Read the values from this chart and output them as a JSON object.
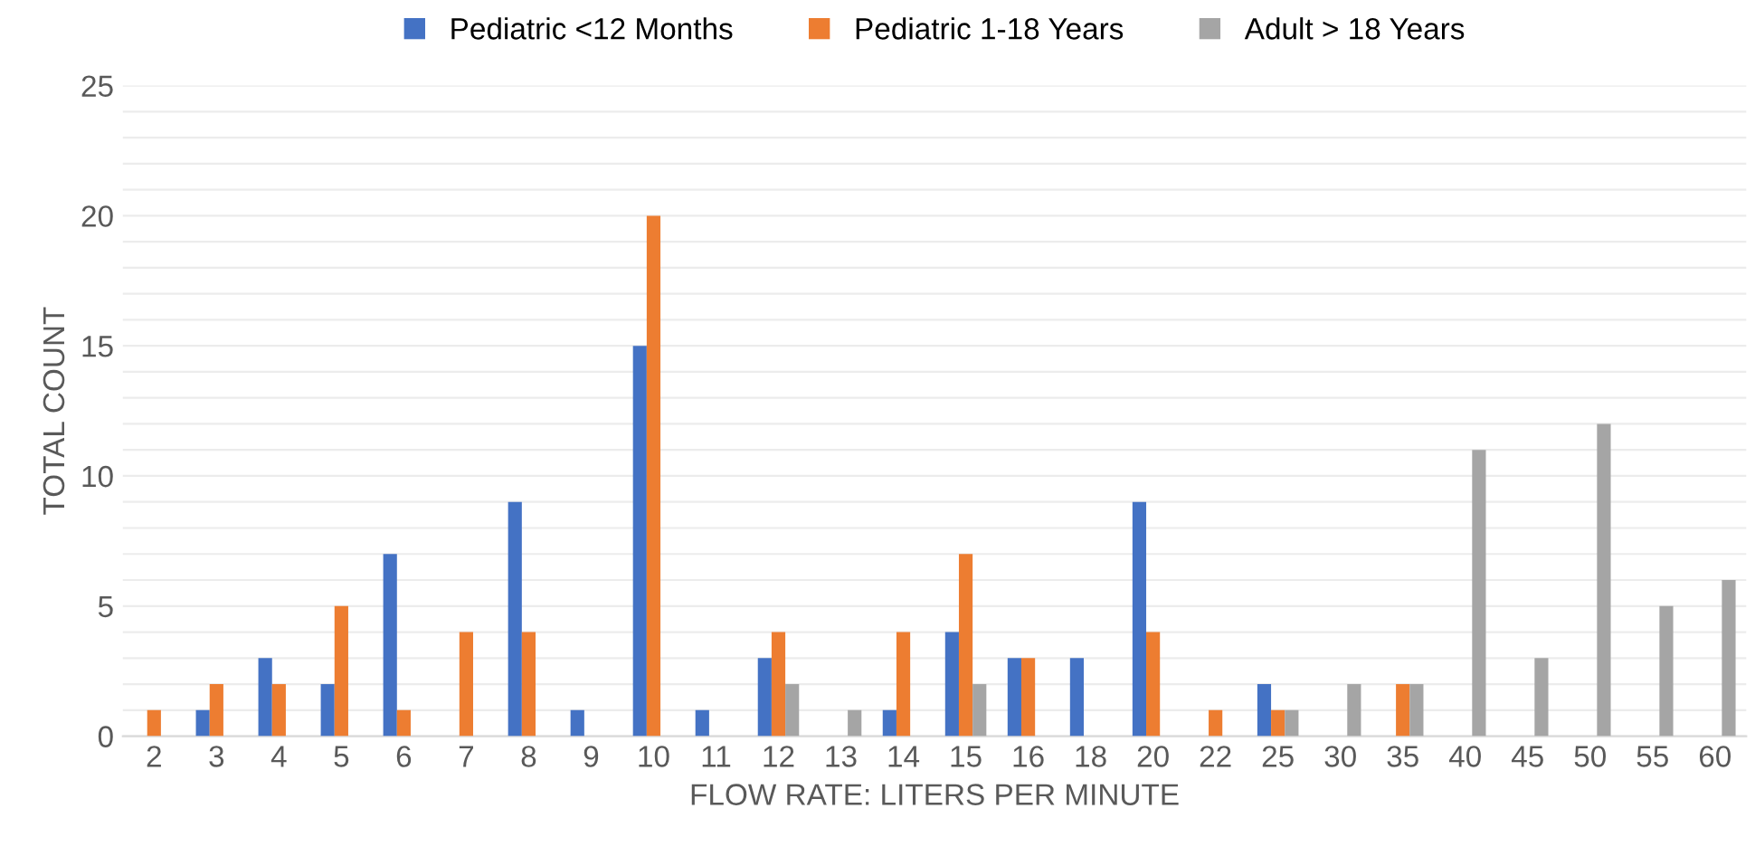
{
  "chart_data": {
    "type": "bar",
    "xlabel": "FLOW RATE: LITERS PER MINUTE",
    "ylabel": "TOTAL COUNT",
    "categories": [
      "2",
      "3",
      "4",
      "5",
      "6",
      "7",
      "8",
      "9",
      "10",
      "11",
      "12",
      "13",
      "14",
      "15",
      "16",
      "18",
      "20",
      "22",
      "25",
      "30",
      "35",
      "40",
      "45",
      "50",
      "55",
      "60"
    ],
    "series": [
      {
        "name": "Pediatric <12 Months",
        "color": "#4472c4",
        "values": [
          0,
          1,
          3,
          2,
          7,
          0,
          9,
          1,
          15,
          1,
          3,
          0,
          1,
          4,
          3,
          3,
          9,
          0,
          2,
          0,
          0,
          0,
          0,
          0,
          0,
          0
        ]
      },
      {
        "name": "Pediatric 1-18 Years",
        "color": "#ed7d31",
        "values": [
          1,
          2,
          2,
          5,
          1,
          4,
          4,
          0,
          20,
          0,
          4,
          0,
          4,
          7,
          3,
          0,
          4,
          1,
          1,
          0,
          2,
          0,
          0,
          0,
          0,
          0
        ]
      },
      {
        "name": "Adult > 18 Years",
        "color": "#a5a5a5",
        "values": [
          0,
          0,
          0,
          0,
          0,
          0,
          0,
          0,
          0,
          0,
          2,
          1,
          0,
          2,
          0,
          0,
          0,
          0,
          1,
          2,
          2,
          11,
          3,
          12,
          5,
          6
        ]
      }
    ],
    "ylim": [
      0,
      25
    ],
    "yticks": [
      0,
      {
        "value": 1,
        "label": null
      },
      {
        "value": 2,
        "label": null
      },
      {
        "value": 3,
        "label": null
      },
      {
        "value": 4,
        "label": null
      },
      5,
      {
        "value": 6,
        "label": null
      },
      {
        "value": 7,
        "label": null
      },
      {
        "value": 8,
        "label": null
      },
      {
        "value": 9,
        "label": null
      },
      10,
      {
        "value": 11,
        "label": null
      },
      {
        "value": 12,
        "label": null
      },
      {
        "value": 13,
        "label": null
      },
      {
        "value": 14,
        "label": null
      },
      15,
      {
        "value": 16,
        "label": null
      },
      {
        "value": 17,
        "label": null
      },
      {
        "value": 18,
        "label": null
      },
      {
        "value": 19,
        "label": null
      },
      20,
      {
        "value": 21,
        "label": null
      },
      {
        "value": 22,
        "label": null
      },
      {
        "value": 23,
        "label": null
      },
      {
        "value": 24,
        "label": null
      },
      25
    ],
    "grid": "y",
    "legend": "top"
  }
}
